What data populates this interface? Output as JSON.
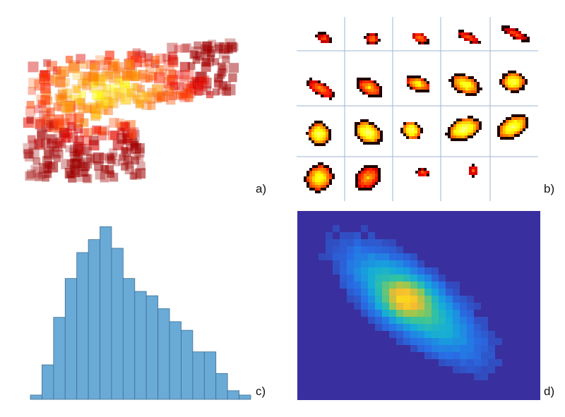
{
  "panels": {
    "a": {
      "label": "a)"
    },
    "b": {
      "label": "b)"
    },
    "c": {
      "label": "c)"
    },
    "d": {
      "label": "d)"
    }
  },
  "colors": {
    "hist_bar": "#6aaad6",
    "hist_edge": "#3d6f94",
    "heat_bg": "#3a2f9e",
    "grid_line": "#9fb6d0",
    "hot_dark": "#1a0000",
    "hot_red": "#d11a00",
    "hot_orange": "#ff7a00",
    "hot_yellow": "#fff06a"
  },
  "chart_data": [
    {
      "type": "bar",
      "panel": "c",
      "values": [
        1,
        8,
        19,
        28,
        34,
        37,
        40,
        35,
        28,
        25,
        24,
        21,
        18,
        16,
        11,
        11,
        6,
        2,
        1
      ],
      "ylim": [
        0,
        42
      ]
    }
  ]
}
